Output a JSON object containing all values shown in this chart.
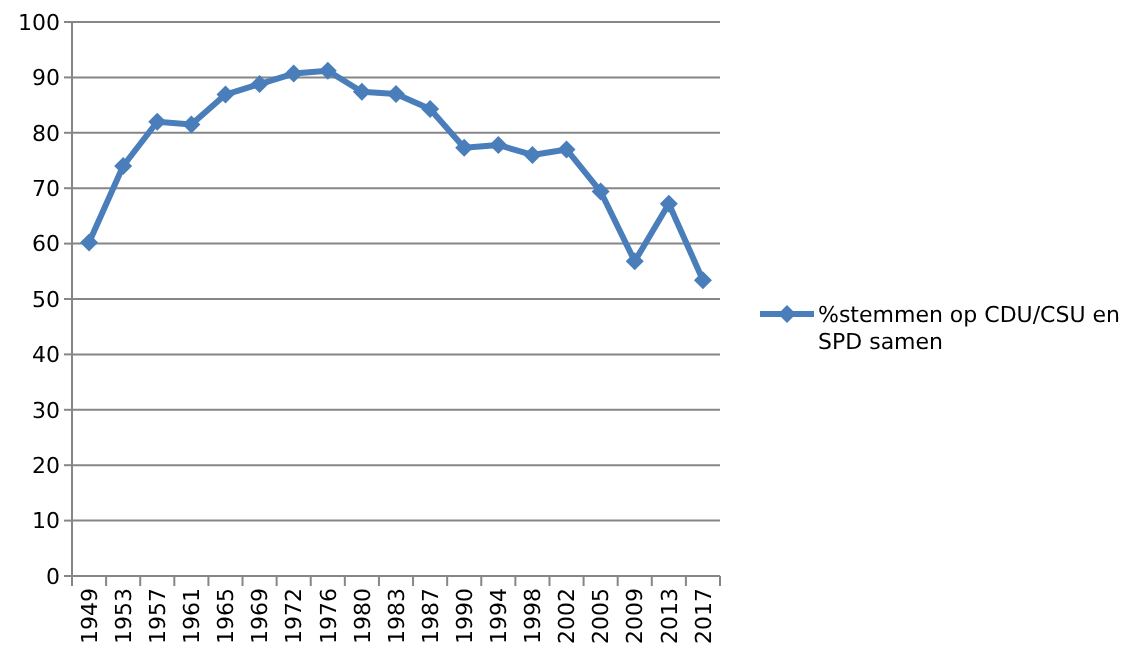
{
  "chart_data": {
    "type": "line",
    "categories": [
      "1949",
      "1953",
      "1957",
      "1961",
      "1965",
      "1969",
      "1972",
      "1976",
      "1980",
      "1983",
      "1987",
      "1990",
      "1994",
      "1998",
      "2002",
      "2005",
      "2009",
      "2013",
      "2017"
    ],
    "series": [
      {
        "name": "%stemmen op CDU/CSU en SPD samen",
        "color": "#4a7ebb",
        "values": [
          60.2,
          74.0,
          82.0,
          81.5,
          86.9,
          88.8,
          90.7,
          91.2,
          87.4,
          87.0,
          84.3,
          77.3,
          77.8,
          76.0,
          77.0,
          69.4,
          56.8,
          67.2,
          53.4
        ]
      }
    ],
    "ylim": [
      0,
      100
    ],
    "yticks": [
      0,
      10,
      20,
      30,
      40,
      50,
      60,
      70,
      80,
      90,
      100
    ],
    "grid": "y",
    "legend": "right",
    "marker": "diamond",
    "line_style": "solid"
  }
}
